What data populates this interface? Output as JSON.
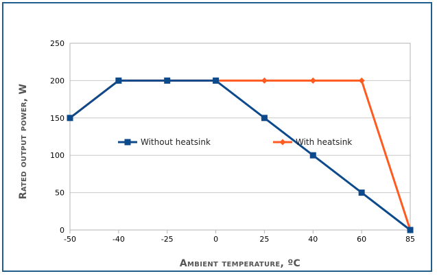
{
  "chart_data": {
    "type": "line",
    "categories": [
      "-50",
      "-40",
      "-25",
      "0",
      "25",
      "40",
      "60",
      "85"
    ],
    "ylabel": "Rated output power, W",
    "xlabel": "Ambient temperature, ºC",
    "ylim": [
      0,
      250
    ],
    "yticks": [
      "0",
      "50",
      "100",
      "150",
      "200",
      "250"
    ],
    "grid": "horizontal",
    "legend_placement": "center",
    "series": [
      {
        "name": "Without heatsink",
        "color": "#0d4a8c",
        "marker": "square",
        "values": [
          150,
          200,
          200,
          200,
          150,
          100,
          50,
          0
        ]
      },
      {
        "name": "With heatsink",
        "color": "#ff5a1f",
        "marker": "diamond",
        "values": [
          150,
          200,
          200,
          200,
          200,
          200,
          200,
          0
        ]
      }
    ]
  }
}
